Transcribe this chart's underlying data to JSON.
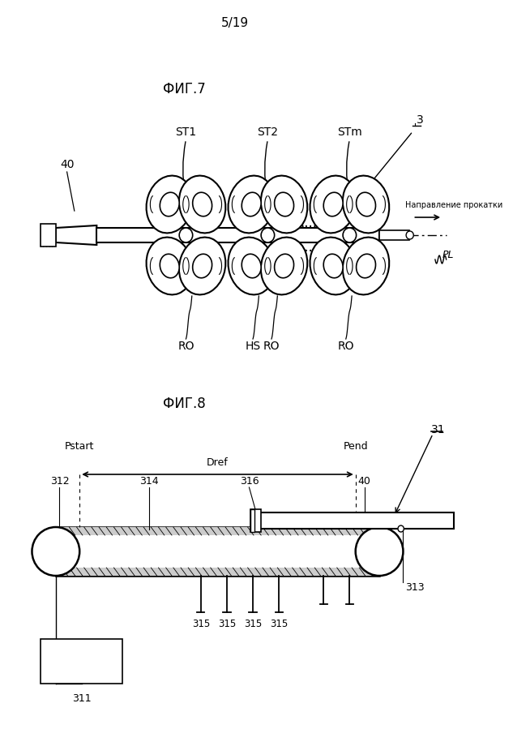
{
  "page_label": "5/19",
  "fig7_label": "ФИГ.7",
  "fig8_label": "ФИГ.8",
  "bg_color": "#ffffff",
  "line_color": "#000000"
}
